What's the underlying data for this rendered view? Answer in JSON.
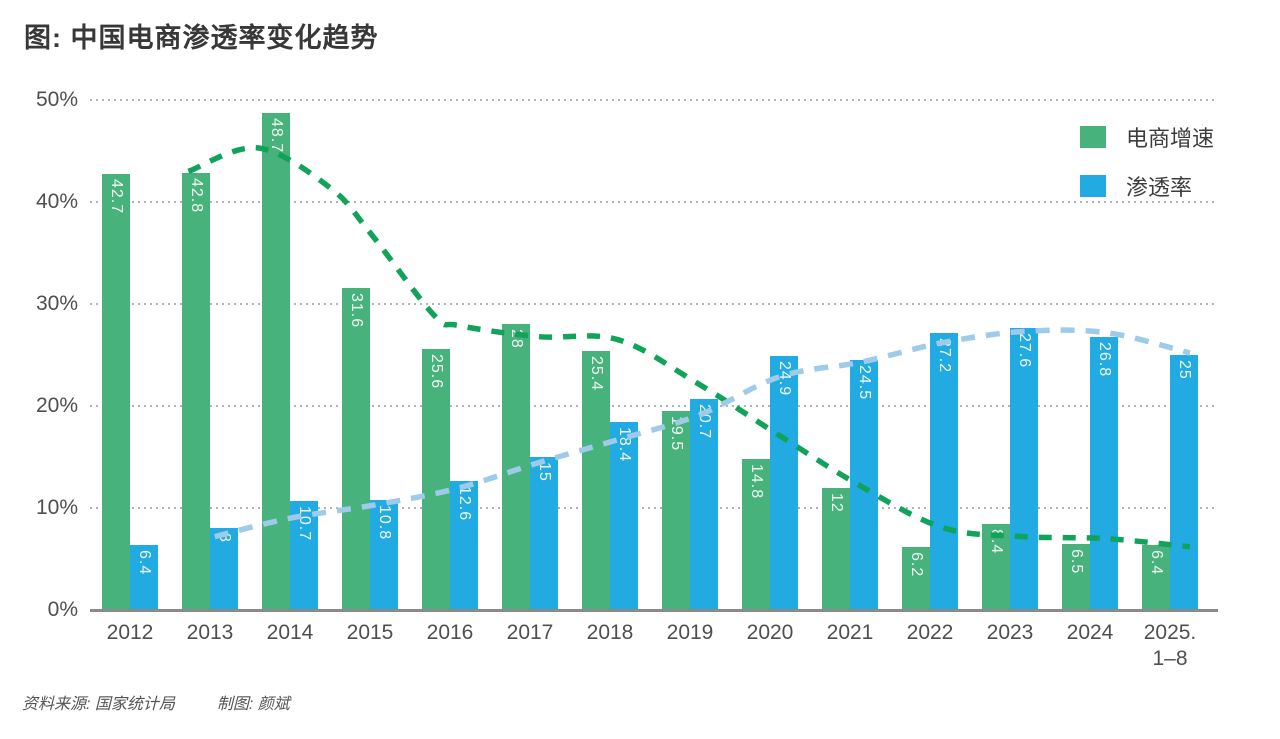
{
  "page": {
    "title": "图: 中国电商渗透率变化趋势"
  },
  "footer": {
    "source": "资料来源: 国家统计局",
    "credit": "制图: 颜斌"
  },
  "chart_data": {
    "type": "bar",
    "title": "图: 中国电商渗透率变化趋势",
    "categories": [
      "2012",
      "2013",
      "2014",
      "2015",
      "2016",
      "2017",
      "2018",
      "2019",
      "2020",
      "2021",
      "2022",
      "2023",
      "2024",
      "2025.\n1–8"
    ],
    "series": [
      {
        "name": "电商增速",
        "color": "#47b27c",
        "values": [
          42.7,
          42.8,
          48.7,
          31.6,
          25.6,
          28,
          25.4,
          19.5,
          14.8,
          12,
          6.2,
          8.4,
          6.5,
          6.4
        ]
      },
      {
        "name": "渗透率",
        "color": "#21abe2",
        "values": [
          6.4,
          8,
          10.7,
          10.8,
          12.6,
          15,
          18.4,
          20.7,
          24.9,
          24.5,
          27.2,
          27.6,
          26.8,
          25
        ]
      }
    ],
    "trendlines": [
      {
        "name": "电商增速趋势线",
        "color": "#12a35b",
        "dash": [
          13,
          11
        ],
        "width": 5.5,
        "points": [
          [
            0.73,
            43.0
          ],
          [
            1.6,
            45.3
          ],
          [
            2.5,
            41.4
          ],
          [
            3.0,
            37.0
          ],
          [
            3.8,
            28.9
          ],
          [
            4.1,
            27.9
          ],
          [
            5.1,
            26.8
          ],
          [
            6.1,
            26.5
          ],
          [
            7.1,
            22.2
          ],
          [
            8.1,
            17.2
          ],
          [
            9.1,
            12.3
          ],
          [
            10.15,
            8.1
          ],
          [
            11.15,
            7.2
          ],
          [
            12.2,
            7.0
          ],
          [
            13.25,
            6.2
          ]
        ]
      },
      {
        "name": "渗透率趋势线",
        "color": "#9ecbe9",
        "dash": [
          14,
          11
        ],
        "width": 5.5,
        "points": [
          [
            1.06,
            7.2
          ],
          [
            2.0,
            9.0
          ],
          [
            3.06,
            10.3
          ],
          [
            4.08,
            11.9
          ],
          [
            5.09,
            14.4
          ],
          [
            6.1,
            16.7
          ],
          [
            7.11,
            19.1
          ],
          [
            8.13,
            22.9
          ],
          [
            9.14,
            24.3
          ],
          [
            10.15,
            26.2
          ],
          [
            11.16,
            27.3
          ],
          [
            12.2,
            27.2
          ],
          [
            13.25,
            25.2
          ]
        ]
      }
    ],
    "ylim": [
      0,
      50
    ],
    "yticks": [
      50,
      40,
      30,
      20,
      10,
      0
    ],
    "ytick_suffix": "%",
    "grid": "dotted-horizontal",
    "legend_position": "top-right"
  }
}
